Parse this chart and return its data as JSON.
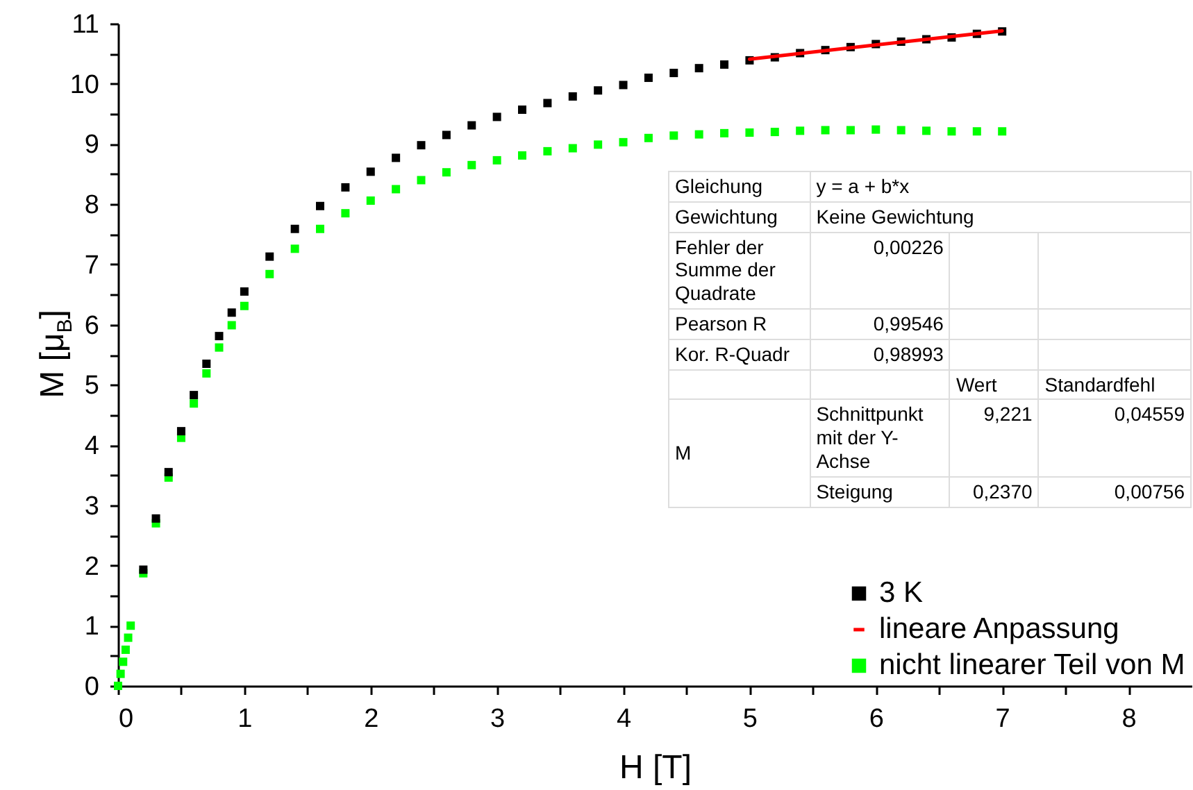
{
  "chart_data": {
    "type": "scatter",
    "xlabel": "H [T]",
    "ylabel": "M [μ$_{B}$]",
    "xlim": [
      0,
      8.5
    ],
    "ylim": [
      0,
      11
    ],
    "xticks": [
      0,
      {
        "value": 0.5,
        "label": null
      },
      1,
      {
        "value": 1.5,
        "label": null
      },
      2,
      {
        "value": 2.5,
        "label": null
      },
      3,
      {
        "value": 3.5,
        "label": null
      },
      4,
      {
        "value": 4.5,
        "label": null
      },
      5,
      {
        "value": 5.5,
        "label": null
      },
      6,
      {
        "value": 6.5,
        "label": null
      },
      7,
      {
        "value": 7.5,
        "label": null
      },
      8
    ],
    "yticks": [
      0,
      {
        "value": 0.5,
        "label": null
      },
      1,
      {
        "value": 1.5,
        "label": null
      },
      2,
      {
        "value": 2.5,
        "label": null
      },
      3,
      {
        "value": 3.5,
        "label": null
      },
      4,
      {
        "value": 4.5,
        "label": null
      },
      5,
      {
        "value": 5.5,
        "label": null
      },
      6,
      {
        "value": 6.5,
        "label": null
      },
      7,
      {
        "value": 7.5,
        "label": null
      },
      8,
      {
        "value": 8.5,
        "label": null
      },
      9,
      {
        "value": 9.5,
        "label": null
      },
      10,
      {
        "value": 10.5,
        "label": null
      },
      11
    ],
    "marker": "square",
    "legend": "bottom right",
    "grid": false,
    "series": [
      {
        "name": "3 K",
        "color": "#000000",
        "x": [
          0.2,
          0.3,
          0.4,
          0.5,
          0.6,
          0.7,
          0.8,
          0.9,
          1.0,
          1.2,
          1.4,
          1.6,
          1.8,
          2.0,
          2.2,
          2.4,
          2.6,
          2.8,
          3.0,
          3.2,
          3.4,
          3.6,
          3.8,
          4.0,
          4.2,
          4.4,
          4.6,
          4.8,
          5.0,
          5.2,
          5.4,
          5.6,
          5.8,
          6.0,
          6.2,
          6.4,
          6.6,
          6.8,
          7.0
        ],
        "values": [
          1.93,
          2.78,
          3.55,
          4.23,
          4.83,
          5.35,
          5.81,
          6.2,
          6.55,
          7.13,
          7.59,
          7.97,
          8.28,
          8.54,
          8.77,
          8.98,
          9.15,
          9.31,
          9.45,
          9.57,
          9.68,
          9.79,
          9.89,
          9.98,
          10.1,
          10.18,
          10.26,
          10.32,
          10.39,
          10.44,
          10.51,
          10.56,
          10.61,
          10.66,
          10.7,
          10.74,
          10.77,
          10.83,
          10.87
        ]
      },
      {
        "name": "lineare Anpassung",
        "type": "line",
        "marker": "none",
        "color": "#ff0000",
        "x": [
          5,
          7
        ],
        "values": [
          10.41,
          10.88
        ]
      },
      {
        "name": "nicht linearer Teil von M",
        "color": "#00ff00",
        "x": [
          0,
          0.02,
          0.04,
          0.06,
          0.08,
          0.1,
          0.2,
          0.3,
          0.4,
          0.5,
          0.6,
          0.7,
          0.8,
          0.9,
          1.0,
          1.2,
          1.4,
          1.6,
          1.8,
          2.0,
          2.2,
          2.4,
          2.6,
          2.8,
          3.0,
          3.2,
          3.4,
          3.6,
          3.8,
          4.0,
          4.2,
          4.4,
          4.6,
          4.8,
          5.0,
          5.2,
          5.4,
          5.6,
          5.8,
          6.0,
          6.2,
          6.4,
          6.6,
          6.8,
          7.0
        ],
        "values": [
          0,
          0.2,
          0.4,
          0.6,
          0.8,
          1.0,
          1.87,
          2.7,
          3.46,
          4.12,
          4.69,
          5.19,
          5.62,
          5.99,
          6.31,
          6.84,
          7.26,
          7.59,
          7.85,
          8.06,
          8.25,
          8.4,
          8.53,
          8.65,
          8.73,
          8.81,
          8.88,
          8.93,
          8.99,
          9.03,
          9.1,
          9.14,
          9.16,
          9.18,
          9.19,
          9.2,
          9.22,
          9.23,
          9.23,
          9.24,
          9.23,
          9.22,
          9.21,
          9.21,
          9.21
        ]
      }
    ],
    "annotations": [
      "Gleichung",
      "y = a + b*x",
      "Gewichtung",
      "Keine Gewichtung",
      "Fehler der Summe der Quadrate",
      "0,00226",
      "Pearson R",
      "0,99546",
      "Kor. R-Quadr",
      "0,98993",
      "Wert",
      "Standardfehl",
      "M",
      "Schnittpunkt mit der Y-Achse",
      "9,221",
      "0,04559",
      "Steigung",
      "0,2370",
      "0,00756"
    ]
  }
}
